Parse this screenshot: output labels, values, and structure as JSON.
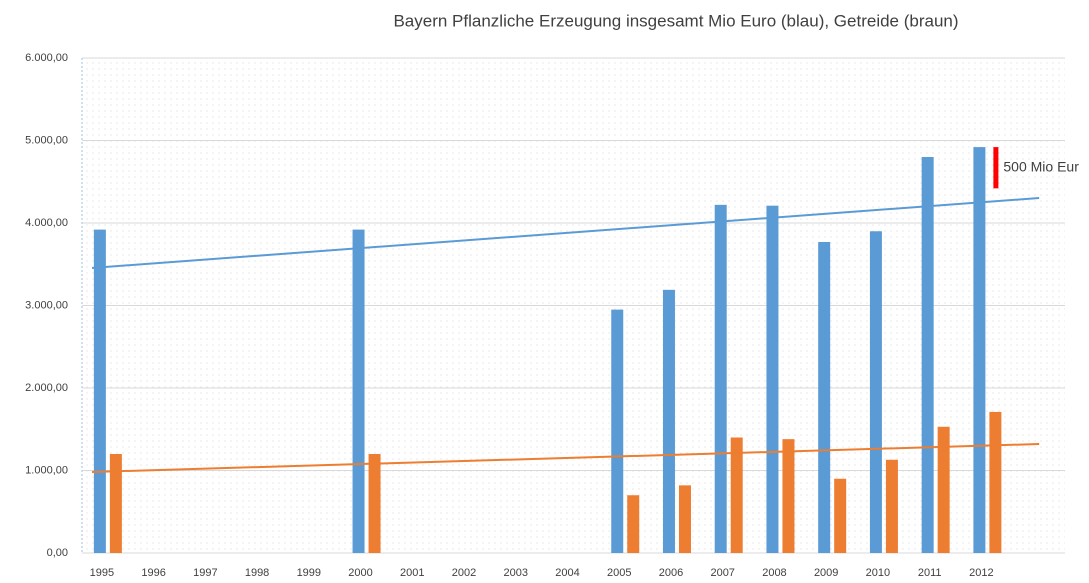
{
  "chart_data": {
    "type": "bar",
    "title": "Bayern Pflanzliche Erzeugung insgesamt Mio Euro (blau), Getreide (braun)",
    "categories": [
      "1995",
      "1996",
      "1997",
      "1998",
      "1999",
      "2000",
      "2001",
      "2002",
      "2003",
      "2004",
      "2005",
      "2006",
      "2007",
      "2008",
      "2009",
      "2010",
      "2011",
      "2012",
      null
    ],
    "series": [
      {
        "color": "#5b9bd5",
        "values": [
          3920,
          null,
          null,
          null,
          null,
          3920,
          null,
          null,
          null,
          null,
          2950,
          3190,
          4220,
          4210,
          3770,
          3900,
          4800,
          4920,
          null
        ]
      },
      {
        "color": "#ed7d31",
        "values": [
          1200,
          null,
          null,
          null,
          null,
          1200,
          null,
          null,
          null,
          null,
          700,
          820,
          1400,
          1380,
          900,
          1130,
          1530,
          1710,
          null
        ]
      }
    ],
    "trendlines": [
      {
        "color": "#5b9bd5",
        "values": [
          3455,
          4303
        ]
      },
      {
        "color": "#ed7d31",
        "values": [
          982,
          1321
        ]
      }
    ],
    "annotation": {
      "text": "500 Mio Eur",
      "value": 500,
      "color": "#ff0000"
    },
    "ylim": [
      0,
      6000
    ],
    "yticks": [
      {
        "value": 0,
        "label": "0,00"
      },
      {
        "value": 1000,
        "label": "1.000,00"
      },
      {
        "value": 2000,
        "label": "2.000,00"
      },
      {
        "value": 3000,
        "label": "3.000,00"
      },
      {
        "value": 4000,
        "label": "4.000,00"
      },
      {
        "value": 5000,
        "label": "5.000,00"
      },
      {
        "value": 6000,
        "label": "6.000,00"
      }
    ],
    "grid": true
  }
}
